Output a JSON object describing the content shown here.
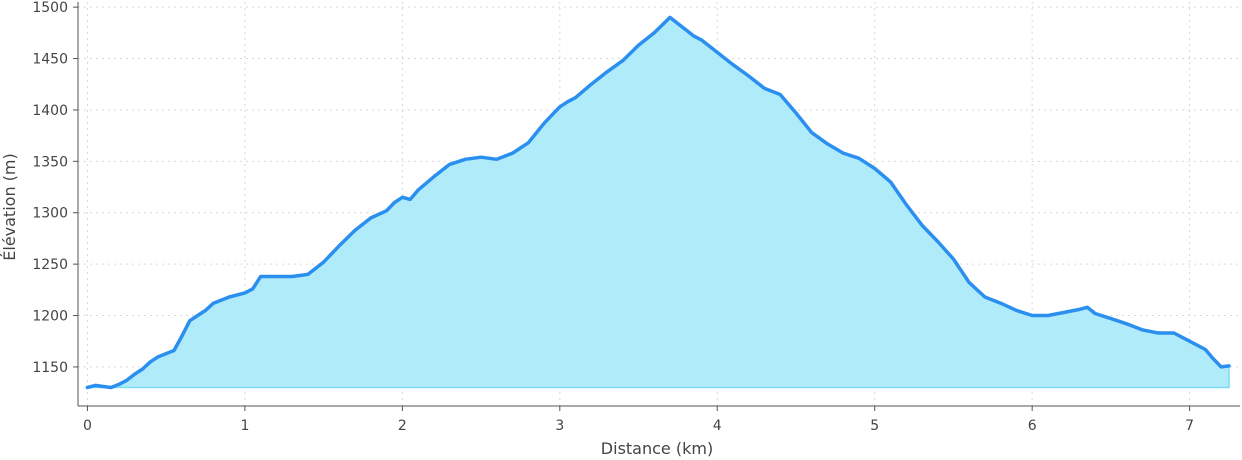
{
  "chart_data": {
    "type": "area",
    "xlabel": "Distance (km)",
    "ylabel": "Élévation (m)",
    "xlim": [
      -0.06,
      7.32
    ],
    "ylim": [
      1112,
      1505
    ],
    "x_ticks": [
      0,
      1,
      2,
      3,
      4,
      5,
      6,
      7
    ],
    "y_ticks": [
      1150,
      1200,
      1250,
      1300,
      1350,
      1400,
      1450,
      1500
    ],
    "grid": true,
    "fill_baseline": 1130,
    "colors": {
      "line": "#2b8ff0",
      "fill": "#b0ebfa",
      "fill_edge": "#7ddcf5"
    },
    "series": [
      {
        "x": [
          0,
          0.05,
          0.1,
          0.15,
          0.2,
          0.25,
          0.3,
          0.35,
          0.4,
          0.45,
          0.5,
          0.55,
          0.6,
          0.65,
          0.7,
          0.75,
          0.8,
          0.9,
          1.0,
          1.05,
          1.1,
          1.2,
          1.3,
          1.4,
          1.5,
          1.6,
          1.7,
          1.8,
          1.9,
          1.95,
          2.0,
          2.05,
          2.1,
          2.2,
          2.3,
          2.4,
          2.5,
          2.6,
          2.7,
          2.75,
          2.8,
          2.9,
          2.95,
          3.0,
          3.05,
          3.1,
          3.2,
          3.3,
          3.4,
          3.5,
          3.6,
          3.7,
          3.75,
          3.8,
          3.85,
          3.9,
          4.0,
          4.1,
          4.2,
          4.3,
          4.4,
          4.5,
          4.6,
          4.7,
          4.8,
          4.9,
          5.0,
          5.1,
          5.2,
          5.3,
          5.4,
          5.5,
          5.6,
          5.7,
          5.8,
          5.9,
          6.0,
          6.1,
          6.2,
          6.3,
          6.35,
          6.4,
          6.5,
          6.6,
          6.7,
          6.8,
          6.9,
          7.0,
          7.1,
          7.15,
          7.2,
          7.25
        ],
        "y": [
          1130,
          1132,
          1131,
          1130,
          1133,
          1137,
          1143,
          1148,
          1155,
          1160,
          1163,
          1166,
          1180,
          1195,
          1200,
          1205,
          1212,
          1218,
          1222,
          1226,
          1238,
          1238,
          1238,
          1240,
          1252,
          1268,
          1283,
          1295,
          1302,
          1310,
          1315,
          1313,
          1322,
          1335,
          1347,
          1352,
          1354,
          1352,
          1358,
          1363,
          1368,
          1387,
          1395,
          1403,
          1408,
          1412,
          1425,
          1437,
          1448,
          1463,
          1475,
          1490,
          1484,
          1478,
          1472,
          1468,
          1456,
          1444,
          1433,
          1421,
          1415,
          1397,
          1378,
          1367,
          1358,
          1353,
          1343,
          1330,
          1308,
          1288,
          1272,
          1255,
          1232,
          1218,
          1212,
          1205,
          1200,
          1200,
          1203,
          1206,
          1208,
          1202,
          1197,
          1192,
          1186,
          1183,
          1183,
          1175,
          1167,
          1158,
          1150,
          1151
        ]
      }
    ]
  }
}
